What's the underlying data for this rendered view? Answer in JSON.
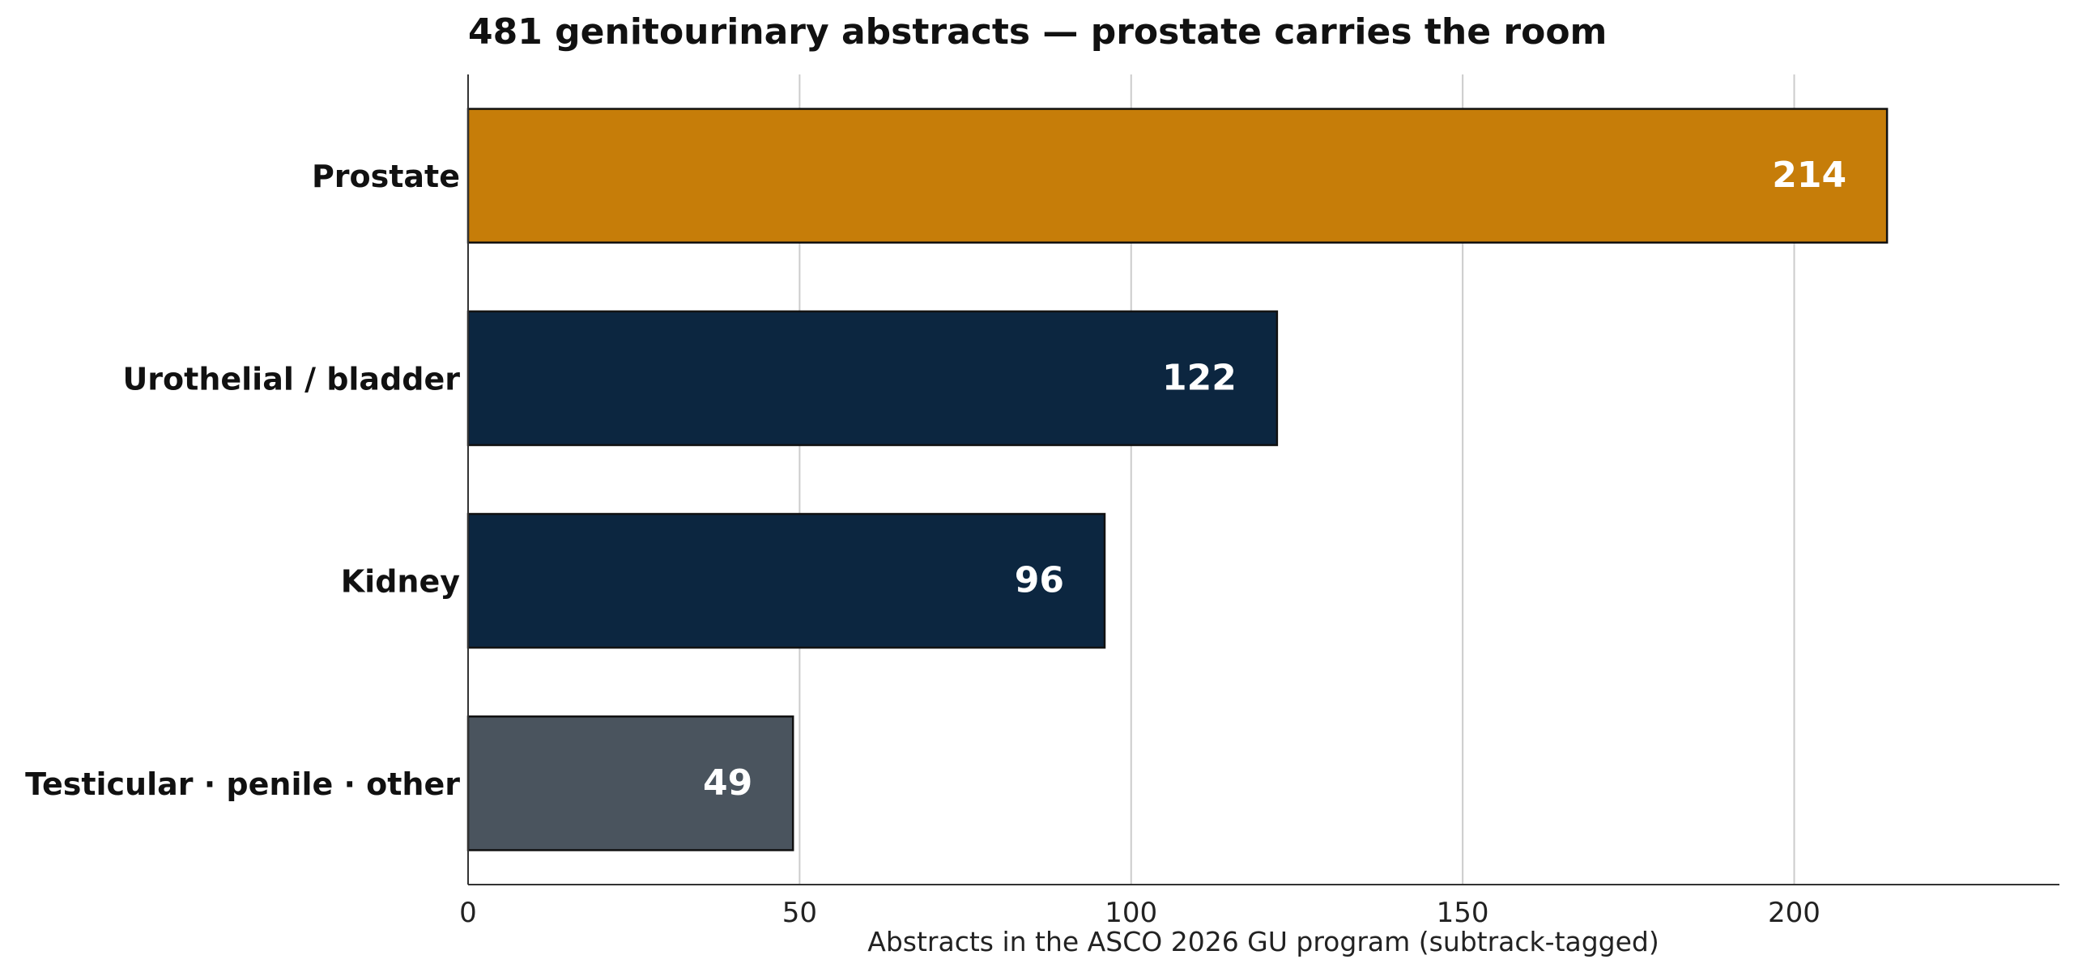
{
  "chart_data": {
    "type": "bar",
    "orientation": "horizontal",
    "title": "481 genitourinary abstracts — prostate carries the room",
    "xlabel": "Abstracts in the ASCO 2026 GU program (subtrack-tagged)",
    "ylabel": "",
    "categories": [
      "Prostate",
      "Urothelial / bladder",
      "Kidney",
      "Testicular · penile · other"
    ],
    "values": [
      214,
      122,
      96,
      49
    ],
    "colors": [
      "#c67d09",
      "#0c2640",
      "#0c2640",
      "#4a545e"
    ],
    "xlim": [
      0,
      240
    ],
    "xticks": [
      0,
      50,
      100,
      150,
      200
    ],
    "grid": "vertical",
    "legend": "none",
    "data_labels": true
  }
}
